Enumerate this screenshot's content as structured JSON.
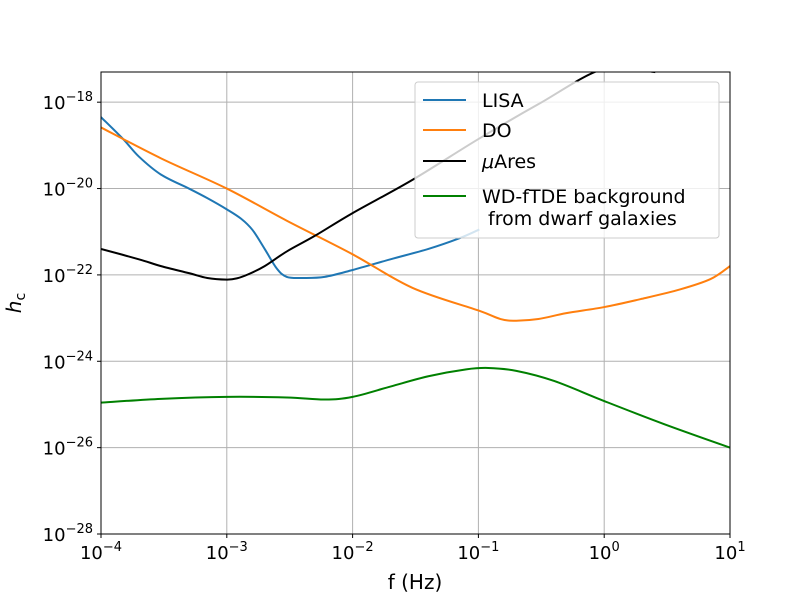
{
  "chart_data": {
    "type": "line",
    "title": "",
    "xlabel": "f (Hz)",
    "ylabel_main": "h",
    "ylabel_sub": "c",
    "xscale": "log",
    "yscale": "log",
    "xlim": [
      0.0001,
      10
    ],
    "ylim": [
      1e-28,
      5e-18
    ],
    "grid": true,
    "legend_position": "top-right",
    "x_ticks": [
      {
        "base": "10",
        "exp": "−4",
        "value": 0.0001
      },
      {
        "base": "10",
        "exp": "−3",
        "value": 0.001
      },
      {
        "base": "10",
        "exp": "−2",
        "value": 0.01
      },
      {
        "base": "10",
        "exp": "−1",
        "value": 0.1
      },
      {
        "base": "10",
        "exp": "0",
        "value": 1
      },
      {
        "base": "10",
        "exp": "1",
        "value": 10
      }
    ],
    "y_ticks": [
      {
        "base": "10",
        "exp": "−28",
        "value": 1e-28
      },
      {
        "base": "10",
        "exp": "−26",
        "value": 1e-26
      },
      {
        "base": "10",
        "exp": "−24",
        "value": 1e-24
      },
      {
        "base": "10",
        "exp": "−22",
        "value": 1e-22
      },
      {
        "base": "10",
        "exp": "−20",
        "value": 1e-20
      },
      {
        "base": "10",
        "exp": "−18",
        "value": 1e-18
      }
    ],
    "series": [
      {
        "name": "LISA",
        "legend_prefix": "",
        "legend_label": "LISA",
        "legend_line2": "",
        "color": "#1f77b4",
        "x": [
          0.0001,
          0.00015,
          0.0002,
          0.0003,
          0.0005,
          0.0007,
          0.001,
          0.0013,
          0.0016,
          0.002,
          0.0025,
          0.003,
          0.004,
          0.006,
          0.01,
          0.02,
          0.04,
          0.07,
          0.1
        ],
        "y": [
          4.5e-19,
          1.4e-19,
          5.5e-20,
          2.1e-20,
          1e-20,
          6e-21,
          3.3e-21,
          2e-21,
          1.1e-21,
          4e-22,
          1.4e-22,
          9e-23,
          8.5e-23,
          9e-23,
          1.3e-22,
          2.3e-22,
          4e-22,
          7e-22,
          1.1e-21
        ]
      },
      {
        "name": "DO",
        "legend_prefix": "",
        "legend_label": "DO",
        "legend_line2": "",
        "color": "#ff7f0e",
        "x": [
          0.0001,
          0.0003,
          0.001,
          0.003,
          0.01,
          0.03,
          0.1,
          0.15,
          0.2,
          0.3,
          0.5,
          1,
          2,
          4,
          7,
          10
        ],
        "y": [
          2.6e-19,
          5e-20,
          1e-20,
          1.8e-21,
          3e-22,
          5e-23,
          1.5e-23,
          9.5e-24,
          8.7e-24,
          9.5e-24,
          1.3e-23,
          1.8e-23,
          2.8e-23,
          4.6e-23,
          8e-23,
          1.6e-22
        ]
      },
      {
        "name": "μAres",
        "legend_prefix": "μ",
        "legend_label": "Ares",
        "legend_line2": "",
        "color": "#000000",
        "x": [
          0.0001,
          0.0002,
          0.0003,
          0.0005,
          0.0007,
          0.001,
          0.0012,
          0.0015,
          0.002,
          0.003,
          0.005,
          0.01,
          0.03,
          0.1,
          0.3,
          1,
          2.5
        ],
        "y": [
          4e-22,
          2.3e-22,
          1.6e-22,
          1.1e-22,
          8.5e-23,
          7.8e-23,
          8.3e-23,
          1.05e-22,
          1.6e-22,
          3.5e-22,
          8e-22,
          2.7e-21,
          1.6e-20,
          1.4e-19,
          9e-19,
          6e-18,
          5e-18
        ]
      },
      {
        "name": "WD-fTDE background from dwarf galaxies",
        "legend_prefix": "",
        "legend_label": "WD-fTDE background",
        "legend_line2": " from dwarf galaxies",
        "color": "#008000",
        "x": [
          0.0001,
          0.0003,
          0.001,
          0.003,
          0.006,
          0.01,
          0.02,
          0.04,
          0.08,
          0.12,
          0.2,
          0.4,
          1,
          3,
          10
        ],
        "y": [
          1.1e-25,
          1.35e-25,
          1.5e-25,
          1.45e-25,
          1.3e-25,
          1.5e-25,
          2.6e-25,
          4.5e-25,
          6.5e-25,
          7e-25,
          6e-25,
          3.5e-25,
          1.2e-25,
          3.5e-26,
          1e-26
        ]
      }
    ]
  }
}
